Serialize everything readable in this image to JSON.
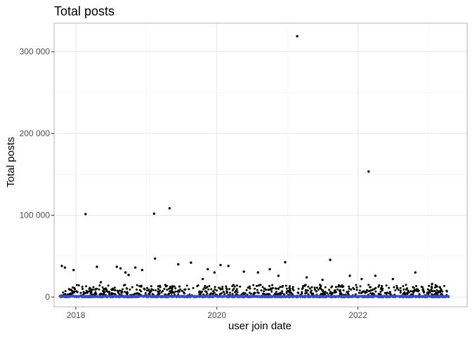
{
  "chart_data": {
    "type": "scatter",
    "title": "Total posts",
    "xlabel": "user join date",
    "ylabel": "Total posts",
    "x_scale": "date",
    "xlim": [
      "2017-09-10",
      "2023-07-20"
    ],
    "ylim": [
      -12000,
      335000
    ],
    "x_ticks": [
      "2018-01-01",
      "2020-01-01",
      "2022-01-01"
    ],
    "x_tick_labels": [
      "2018",
      "2020",
      "2022"
    ],
    "y_ticks": [
      0,
      100000,
      200000,
      300000
    ],
    "y_tick_labels": [
      "0",
      "100 000",
      "200 000",
      "300 000"
    ],
    "grid": true,
    "legend": "none",
    "series": [
      {
        "kind": "points",
        "color": "#000000",
        "points": [
          {
            "x": "2017-10-20",
            "y": 38000
          },
          {
            "x": "2017-11-05",
            "y": 36000
          },
          {
            "x": "2017-12-20",
            "y": 33000
          },
          {
            "x": "2018-02-20",
            "y": 101500
          },
          {
            "x": "2018-04-20",
            "y": 37000
          },
          {
            "x": "2018-05-10",
            "y": 18000
          },
          {
            "x": "2018-08-01",
            "y": 37000
          },
          {
            "x": "2018-08-20",
            "y": 35000
          },
          {
            "x": "2018-09-15",
            "y": 30000
          },
          {
            "x": "2018-10-01",
            "y": 27000
          },
          {
            "x": "2018-11-05",
            "y": 36000
          },
          {
            "x": "2018-12-10",
            "y": 33000
          },
          {
            "x": "2019-02-10",
            "y": 102000
          },
          {
            "x": "2019-02-15",
            "y": 47000
          },
          {
            "x": "2019-05-01",
            "y": 108500
          },
          {
            "x": "2019-06-15",
            "y": 40000
          },
          {
            "x": "2019-08-20",
            "y": 42000
          },
          {
            "x": "2019-10-20",
            "y": 22000
          },
          {
            "x": "2019-11-15",
            "y": 34000
          },
          {
            "x": "2019-12-20",
            "y": 30000
          },
          {
            "x": "2020-01-20",
            "y": 39000
          },
          {
            "x": "2020-03-01",
            "y": 38000
          },
          {
            "x": "2020-05-20",
            "y": 31000
          },
          {
            "x": "2020-08-01",
            "y": 30000
          },
          {
            "x": "2020-10-01",
            "y": 34000
          },
          {
            "x": "2020-11-15",
            "y": 26000
          },
          {
            "x": "2020-12-20",
            "y": 42500
          },
          {
            "x": "2021-02-20",
            "y": 319000
          },
          {
            "x": "2021-04-10",
            "y": 24000
          },
          {
            "x": "2021-07-01",
            "y": 21000
          },
          {
            "x": "2021-08-10",
            "y": 45500
          },
          {
            "x": "2021-10-01",
            "y": 13000
          },
          {
            "x": "2021-11-20",
            "y": 26000
          },
          {
            "x": "2022-01-20",
            "y": 22000
          },
          {
            "x": "2022-02-25",
            "y": 153500
          },
          {
            "x": "2022-04-01",
            "y": 26000
          },
          {
            "x": "2022-07-01",
            "y": 22000
          },
          {
            "x": "2022-10-25",
            "y": 30000
          },
          {
            "x": "2023-01-20",
            "y": 16000
          },
          {
            "x": "2023-03-01",
            "y": 12000
          }
        ],
        "dense_band": {
          "x_range": [
            "2017-10-10",
            "2023-04-15"
          ],
          "y_range": [
            0,
            15000
          ],
          "note": "thousands of overlapping points concentrated near zero"
        }
      },
      {
        "kind": "trend_line",
        "color": "#3a4fd6",
        "x_range": [
          "2017-10-10",
          "2023-04-15"
        ],
        "y_value": 0
      }
    ]
  }
}
